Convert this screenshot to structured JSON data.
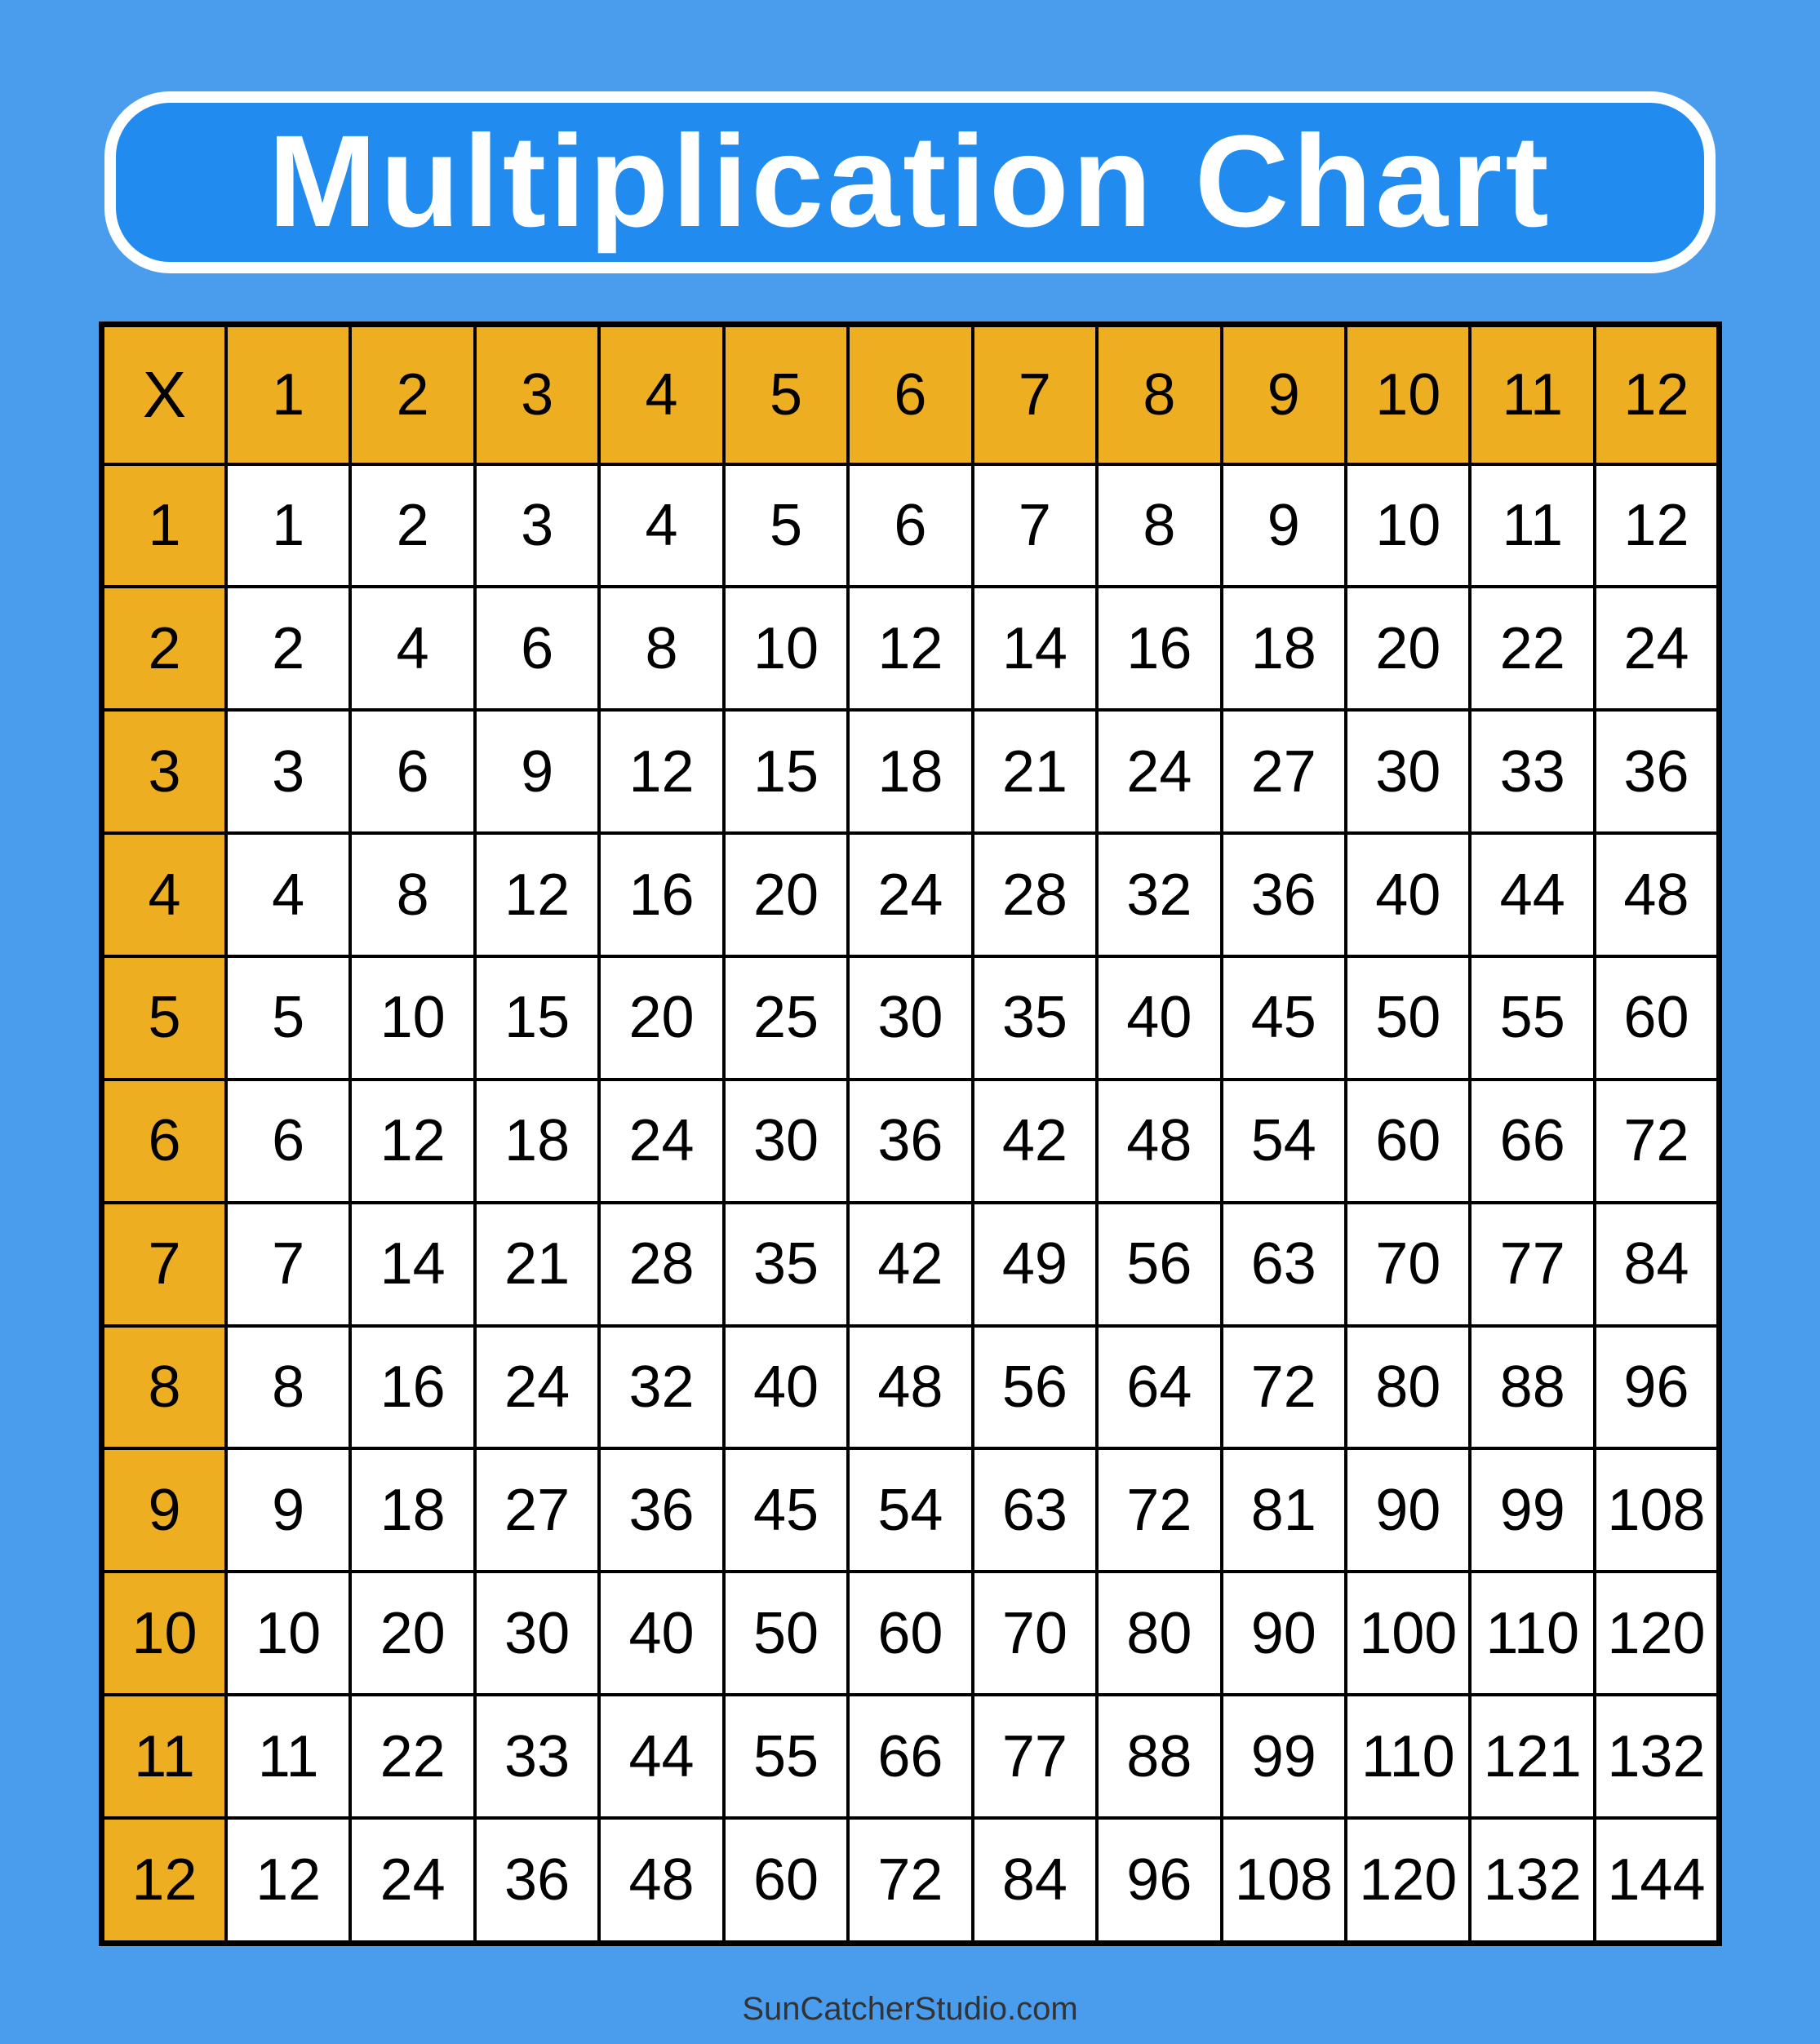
{
  "title": "Multiplication Chart",
  "colors": {
    "background": "#4A9CEC",
    "title_box": "#218BEF",
    "header": "#EEAE22",
    "cell": "#FFFFFF"
  },
  "table": {
    "corner": "X",
    "column_headers": [
      "1",
      "2",
      "3",
      "4",
      "5",
      "6",
      "7",
      "8",
      "9",
      "10",
      "11",
      "12"
    ],
    "rows": [
      {
        "header": "1",
        "cells": [
          "1",
          "2",
          "3",
          "4",
          "5",
          "6",
          "7",
          "8",
          "9",
          "10",
          "11",
          "12"
        ]
      },
      {
        "header": "2",
        "cells": [
          "2",
          "4",
          "6",
          "8",
          "10",
          "12",
          "14",
          "16",
          "18",
          "20",
          "22",
          "24"
        ]
      },
      {
        "header": "3",
        "cells": [
          "3",
          "6",
          "9",
          "12",
          "15",
          "18",
          "21",
          "24",
          "27",
          "30",
          "33",
          "36"
        ]
      },
      {
        "header": "4",
        "cells": [
          "4",
          "8",
          "12",
          "16",
          "20",
          "24",
          "28",
          "32",
          "36",
          "40",
          "44",
          "48"
        ]
      },
      {
        "header": "5",
        "cells": [
          "5",
          "10",
          "15",
          "20",
          "25",
          "30",
          "35",
          "40",
          "45",
          "50",
          "55",
          "60"
        ]
      },
      {
        "header": "6",
        "cells": [
          "6",
          "12",
          "18",
          "24",
          "30",
          "36",
          "42",
          "48",
          "54",
          "60",
          "66",
          "72"
        ]
      },
      {
        "header": "7",
        "cells": [
          "7",
          "14",
          "21",
          "28",
          "35",
          "42",
          "49",
          "56",
          "63",
          "70",
          "77",
          "84"
        ]
      },
      {
        "header": "8",
        "cells": [
          "8",
          "16",
          "24",
          "32",
          "40",
          "48",
          "56",
          "64",
          "72",
          "80",
          "88",
          "96"
        ]
      },
      {
        "header": "9",
        "cells": [
          "9",
          "18",
          "27",
          "36",
          "45",
          "54",
          "63",
          "72",
          "81",
          "90",
          "99",
          "108"
        ]
      },
      {
        "header": "10",
        "cells": [
          "10",
          "20",
          "30",
          "40",
          "50",
          "60",
          "70",
          "80",
          "90",
          "100",
          "110",
          "120"
        ]
      },
      {
        "header": "11",
        "cells": [
          "11",
          "22",
          "33",
          "44",
          "55",
          "66",
          "77",
          "88",
          "99",
          "110",
          "121",
          "132"
        ]
      },
      {
        "header": "12",
        "cells": [
          "12",
          "24",
          "36",
          "48",
          "60",
          "72",
          "84",
          "96",
          "108",
          "120",
          "132",
          "144"
        ]
      }
    ]
  },
  "footer": "SunCatcherStudio.com"
}
